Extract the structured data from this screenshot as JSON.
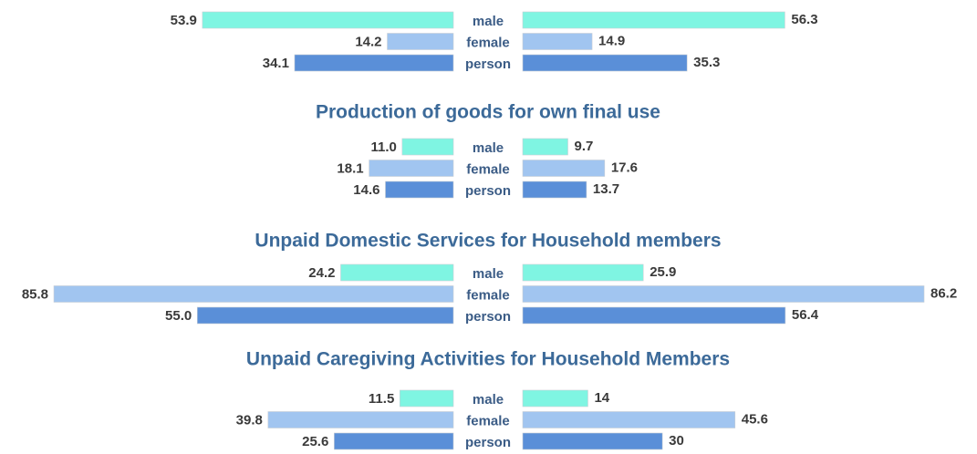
{
  "chart_data": {
    "type": "bar",
    "orientation": "horizontal",
    "layout": "back-to-back",
    "colors": {
      "male": "#7ff5e2",
      "female": "#a1c5f0",
      "person": "#5a8fd8"
    },
    "value_max": 86.2,
    "panels": [
      {
        "title": "",
        "categories": [
          "male",
          "female",
          "person"
        ],
        "left_values": [
          53.9,
          14.2,
          34.1
        ],
        "left_labels": [
          "53.9",
          "14.2",
          "34.1"
        ],
        "right_values": [
          56.3,
          14.9,
          35.3
        ],
        "right_labels": [
          "56.3",
          "14.9",
          "35.3"
        ]
      },
      {
        "title": "Production of goods for own final use",
        "categories": [
          "male",
          "female",
          "person"
        ],
        "left_values": [
          11.0,
          18.1,
          14.6
        ],
        "left_labels": [
          "11.0",
          "18.1",
          "14.6"
        ],
        "right_values": [
          9.7,
          17.6,
          13.7
        ],
        "right_labels": [
          "9.7",
          "17.6",
          "13.7"
        ]
      },
      {
        "title": "Unpaid Domestic Services for Household members",
        "categories": [
          "male",
          "female",
          "person"
        ],
        "left_values": [
          24.2,
          85.8,
          55.0
        ],
        "left_labels": [
          "24.2",
          "85.8",
          "55.0"
        ],
        "right_values": [
          25.9,
          86.2,
          56.4
        ],
        "right_labels": [
          "25.9",
          "86.2",
          "56.4"
        ]
      },
      {
        "title": "Unpaid Caregiving Activities for Household Members",
        "categories": [
          "male",
          "female",
          "person"
        ],
        "left_values": [
          11.5,
          39.8,
          25.6
        ],
        "left_labels": [
          "11.5",
          "39.8",
          "25.6"
        ],
        "right_values": [
          14,
          45.6,
          30
        ],
        "right_labels": [
          "14",
          "45.6",
          "30"
        ]
      }
    ]
  }
}
